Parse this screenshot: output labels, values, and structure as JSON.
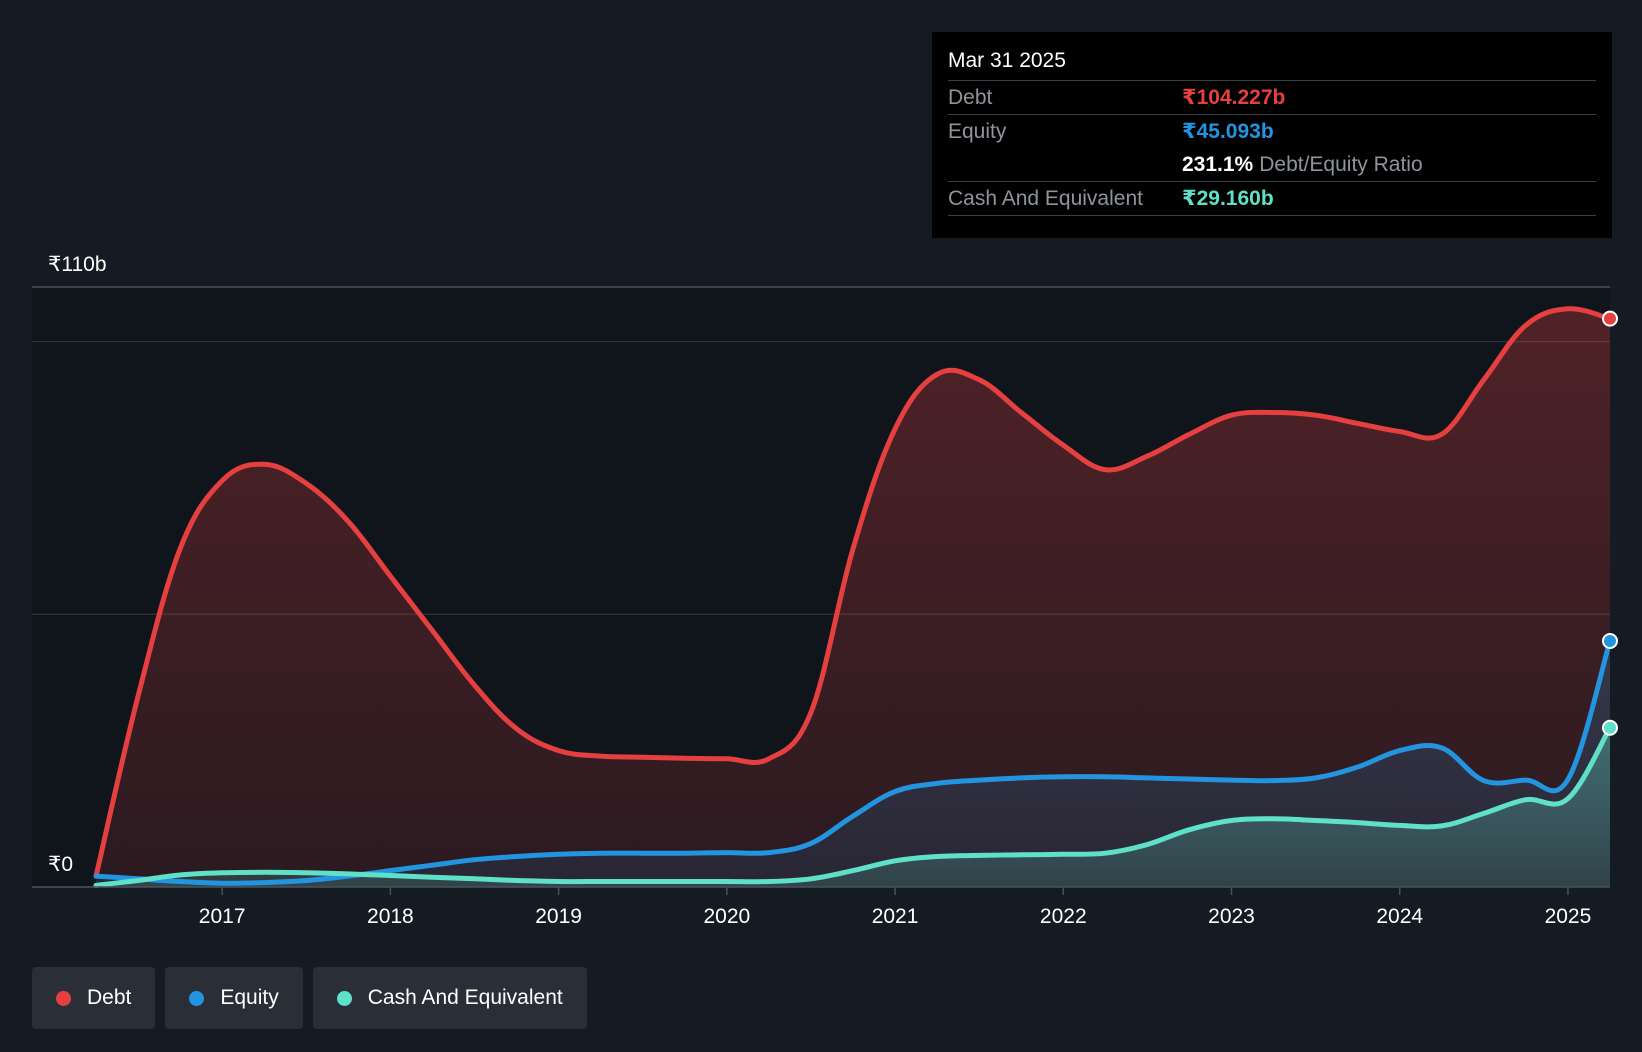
{
  "colors": {
    "background": "#151b23",
    "debt": "#e5403f",
    "equity": "#2394df",
    "cash": "#5fe0c8",
    "grid": "#333a44",
    "text": "#ffffff",
    "muted": "#8f949b"
  },
  "tooltip": {
    "date": "Mar 31 2025",
    "debt_label": "Debt",
    "debt_value": "₹104.227b",
    "equity_label": "Equity",
    "equity_value": "₹45.093b",
    "ratio_value": "231.1%",
    "ratio_label": "Debt/Equity Ratio",
    "cash_label": "Cash And Equivalent",
    "cash_value": "₹29.160b"
  },
  "legend": {
    "items": [
      {
        "label": "Debt",
        "color": "#e5403f"
      },
      {
        "label": "Equity",
        "color": "#2394df"
      },
      {
        "label": "Cash And Equivalent",
        "color": "#5fe0c8"
      }
    ]
  },
  "chart_data": {
    "type": "area",
    "title": "",
    "xlabel": "",
    "ylabel": "",
    "y_top_label": "₹110b",
    "y_zero_label": "₹0",
    "ylim": [
      0,
      110
    ],
    "xlim": [
      2016.25,
      2025.25
    ],
    "x_ticks": [
      2017,
      2018,
      2019,
      2020,
      2021,
      2022,
      2023,
      2024,
      2025
    ],
    "x_tick_labels": [
      "2017",
      "2018",
      "2019",
      "2020",
      "2021",
      "2022",
      "2023",
      "2024",
      "2025"
    ],
    "y_gridlines": [
      0,
      50,
      100,
      110
    ],
    "series": [
      {
        "name": "Debt",
        "color": "#e5403f",
        "x": [
          2016.25,
          2016.5,
          2016.75,
          2017.0,
          2017.25,
          2017.5,
          2017.75,
          2018.0,
          2018.25,
          2018.5,
          2018.75,
          2019.0,
          2019.25,
          2019.5,
          2019.75,
          2020.0,
          2020.25,
          2020.5,
          2020.75,
          2021.0,
          2021.25,
          2021.5,
          2021.75,
          2022.0,
          2022.25,
          2022.5,
          2022.75,
          2023.0,
          2023.25,
          2023.5,
          2023.75,
          2024.0,
          2024.25,
          2024.5,
          2024.75,
          2025.0,
          2025.25
        ],
        "values": [
          2,
          35,
          62,
          74.5,
          77.5,
          74,
          67,
          57,
          47,
          37,
          29,
          25,
          24,
          23.8,
          23.6,
          23.5,
          23.5,
          32,
          62,
          84,
          94,
          93,
          87,
          81,
          76.5,
          79,
          83,
          86.5,
          87,
          86.5,
          85,
          83.5,
          83,
          93,
          103,
          106,
          104.2
        ]
      },
      {
        "name": "Equity",
        "color": "#2394df",
        "x": [
          2016.25,
          2016.5,
          2016.75,
          2017.0,
          2017.25,
          2017.5,
          2017.75,
          2018.0,
          2018.25,
          2018.5,
          2018.75,
          2019.0,
          2019.25,
          2019.5,
          2019.75,
          2020.0,
          2020.25,
          2020.5,
          2020.75,
          2021.0,
          2021.25,
          2021.5,
          2021.75,
          2022.0,
          2022.25,
          2022.5,
          2022.75,
          2023.0,
          2023.25,
          2023.5,
          2023.75,
          2024.0,
          2024.25,
          2024.5,
          2024.75,
          2025.0,
          2025.25
        ],
        "values": [
          2,
          1.5,
          1,
          0.7,
          0.8,
          1.2,
          2,
          3,
          4,
          5,
          5.6,
          6.0,
          6.2,
          6.2,
          6.2,
          6.3,
          6.3,
          8,
          13,
          17.5,
          19,
          19.6,
          20,
          20.2,
          20.2,
          20,
          19.8,
          19.6,
          19.5,
          20,
          22,
          25,
          25.5,
          19.5,
          19.6,
          19.7,
          45.1
        ]
      },
      {
        "name": "Cash And Equivalent",
        "color": "#5fe0c8",
        "x": [
          2016.25,
          2016.5,
          2016.75,
          2017.0,
          2017.25,
          2017.5,
          2017.75,
          2018.0,
          2018.25,
          2018.5,
          2018.75,
          2019.0,
          2019.25,
          2019.5,
          2019.75,
          2020.0,
          2020.25,
          2020.5,
          2020.75,
          2021.0,
          2021.25,
          2021.5,
          2021.75,
          2022.0,
          2022.25,
          2022.5,
          2022.75,
          2023.0,
          2023.25,
          2023.5,
          2023.75,
          2024.0,
          2024.25,
          2024.5,
          2024.75,
          2025.0,
          2025.25
        ],
        "values": [
          0.3,
          1.2,
          2.2,
          2.6,
          2.7,
          2.6,
          2.4,
          2.1,
          1.8,
          1.5,
          1.2,
          1.0,
          1.0,
          1.0,
          1.0,
          1.0,
          1.0,
          1.5,
          3,
          4.8,
          5.6,
          5.8,
          5.9,
          6.0,
          6.2,
          7.8,
          10.5,
          12.2,
          12.5,
          12.2,
          11.8,
          11.3,
          11.2,
          13.5,
          16,
          16.2,
          29.2
        ]
      }
    ]
  }
}
